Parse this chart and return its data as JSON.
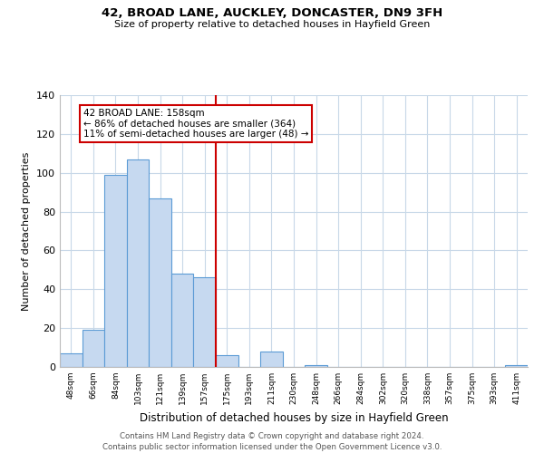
{
  "title": "42, BROAD LANE, AUCKLEY, DONCASTER, DN9 3FH",
  "subtitle": "Size of property relative to detached houses in Hayfield Green",
  "xlabel": "Distribution of detached houses by size in Hayfield Green",
  "ylabel": "Number of detached properties",
  "bin_labels": [
    "48sqm",
    "66sqm",
    "84sqm",
    "103sqm",
    "121sqm",
    "139sqm",
    "157sqm",
    "175sqm",
    "193sqm",
    "211sqm",
    "230sqm",
    "248sqm",
    "266sqm",
    "284sqm",
    "302sqm",
    "320sqm",
    "338sqm",
    "357sqm",
    "375sqm",
    "393sqm",
    "411sqm"
  ],
  "bar_heights": [
    7,
    19,
    99,
    107,
    87,
    48,
    46,
    6,
    0,
    8,
    0,
    1,
    0,
    0,
    0,
    0,
    0,
    0,
    0,
    0,
    1
  ],
  "bar_color": "#c6d9f0",
  "bar_edge_color": "#5b9bd5",
  "highlight_line_color": "#cc0000",
  "annotation_title": "42 BROAD LANE: 158sqm",
  "annotation_line1": "← 86% of detached houses are smaller (364)",
  "annotation_line2": "11% of semi-detached houses are larger (48) →",
  "annotation_box_color": "#ffffff",
  "annotation_box_edge": "#cc0000",
  "ylim": [
    0,
    140
  ],
  "yticks": [
    0,
    20,
    40,
    60,
    80,
    100,
    120,
    140
  ],
  "footer1": "Contains HM Land Registry data © Crown copyright and database right 2024.",
  "footer2": "Contains public sector information licensed under the Open Government Licence v3.0.",
  "bg_color": "#ffffff",
  "grid_color": "#c8d8e8"
}
